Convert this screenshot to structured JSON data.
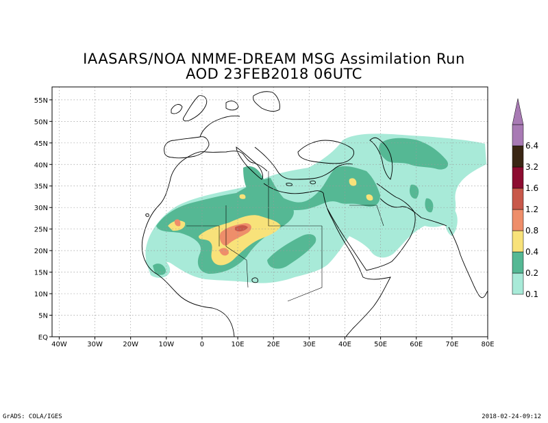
{
  "header": {
    "title_line1": "IAASARS/NOA NMME-DREAM MSG Assimilation Run",
    "title_line2": "AOD  23FEB2018 06UTC"
  },
  "footer": {
    "left": "GrADS: COLA/IGES",
    "right": "2018-02-24-09:12"
  },
  "map": {
    "lon_range": [
      -42,
      80
    ],
    "lat_range": [
      0,
      58
    ],
    "x_ticks": [
      "40W",
      "30W",
      "20W",
      "10W",
      "0",
      "10E",
      "20E",
      "30E",
      "40E",
      "50E",
      "60E",
      "70E",
      "80E"
    ],
    "y_ticks": [
      "EQ",
      "5N",
      "10N",
      "15N",
      "20N",
      "25N",
      "30N",
      "35N",
      "40N",
      "45N",
      "50N",
      "55N"
    ],
    "grid": true
  },
  "legend": {
    "levels": [
      "0.1",
      "0.2",
      "0.4",
      "0.8",
      "1.2",
      "1.6",
      "3.2",
      "6.4"
    ],
    "colors": [
      "#a8ead8",
      "#55b894",
      "#f8e27a",
      "#ee8e6a",
      "#c8584a",
      "#8c0c30",
      "#3a2614",
      "#a87ab4"
    ]
  }
}
